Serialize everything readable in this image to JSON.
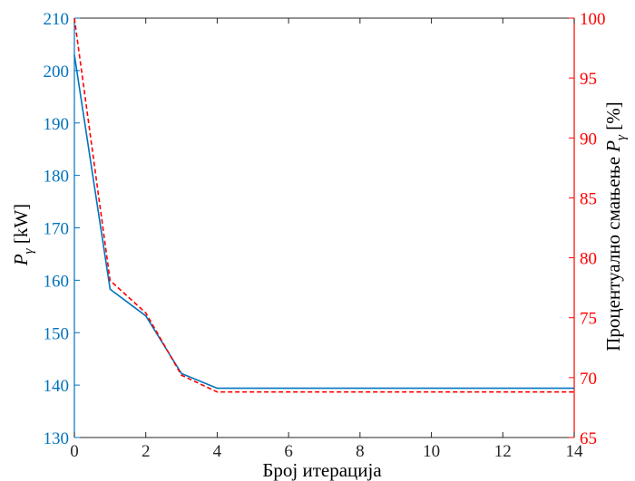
{
  "chart_data": {
    "type": "line",
    "xlabel": "Број итерација",
    "ylabel_left": {
      "symbol": "P",
      "subscript": "γ",
      "unit": " [kW]"
    },
    "ylabel_right": {
      "text": "Процентуално смањење ",
      "symbol": "P",
      "subscript": "γ",
      "unit": " [%]"
    },
    "xlim": [
      0,
      14
    ],
    "ylim_left": [
      130,
      210
    ],
    "ylim_right": [
      65,
      100
    ],
    "x_ticks": [
      "0",
      "2",
      "4",
      "6",
      "8",
      "10",
      "12",
      "14"
    ],
    "y_left_ticks": [
      "130",
      "140",
      "150",
      "160",
      "170",
      "180",
      "190",
      "200",
      "210"
    ],
    "y_right_ticks": [
      "65",
      "70",
      "75",
      "80",
      "85",
      "90",
      "95",
      "100"
    ],
    "grid": false,
    "series": [
      {
        "axis": "left",
        "style": "solid",
        "color": "#0072bd",
        "x": [
          0,
          1,
          2,
          3,
          4,
          5,
          6,
          7,
          8,
          9,
          10,
          11,
          12,
          13,
          14
        ],
        "y": [
          203,
          158.3,
          153.2,
          142.2,
          139.4,
          139.4,
          139.4,
          139.4,
          139.4,
          139.4,
          139.4,
          139.4,
          139.4,
          139.4,
          139.4
        ]
      },
      {
        "axis": "right",
        "style": "dashed",
        "color": "#ff0000",
        "x": [
          0,
          1,
          2,
          3,
          4,
          5,
          6,
          7,
          8,
          9,
          10,
          11,
          12,
          13,
          14
        ],
        "y": [
          100,
          78.1,
          75.4,
          70.2,
          68.8,
          68.8,
          68.8,
          68.8,
          68.8,
          68.8,
          68.8,
          68.8,
          68.8,
          68.8,
          68.8
        ]
      }
    ]
  },
  "colors": {
    "left_axis": "#0072bd",
    "right_axis": "#ff0000",
    "frame": "#262626",
    "label_text": "#000000"
  }
}
